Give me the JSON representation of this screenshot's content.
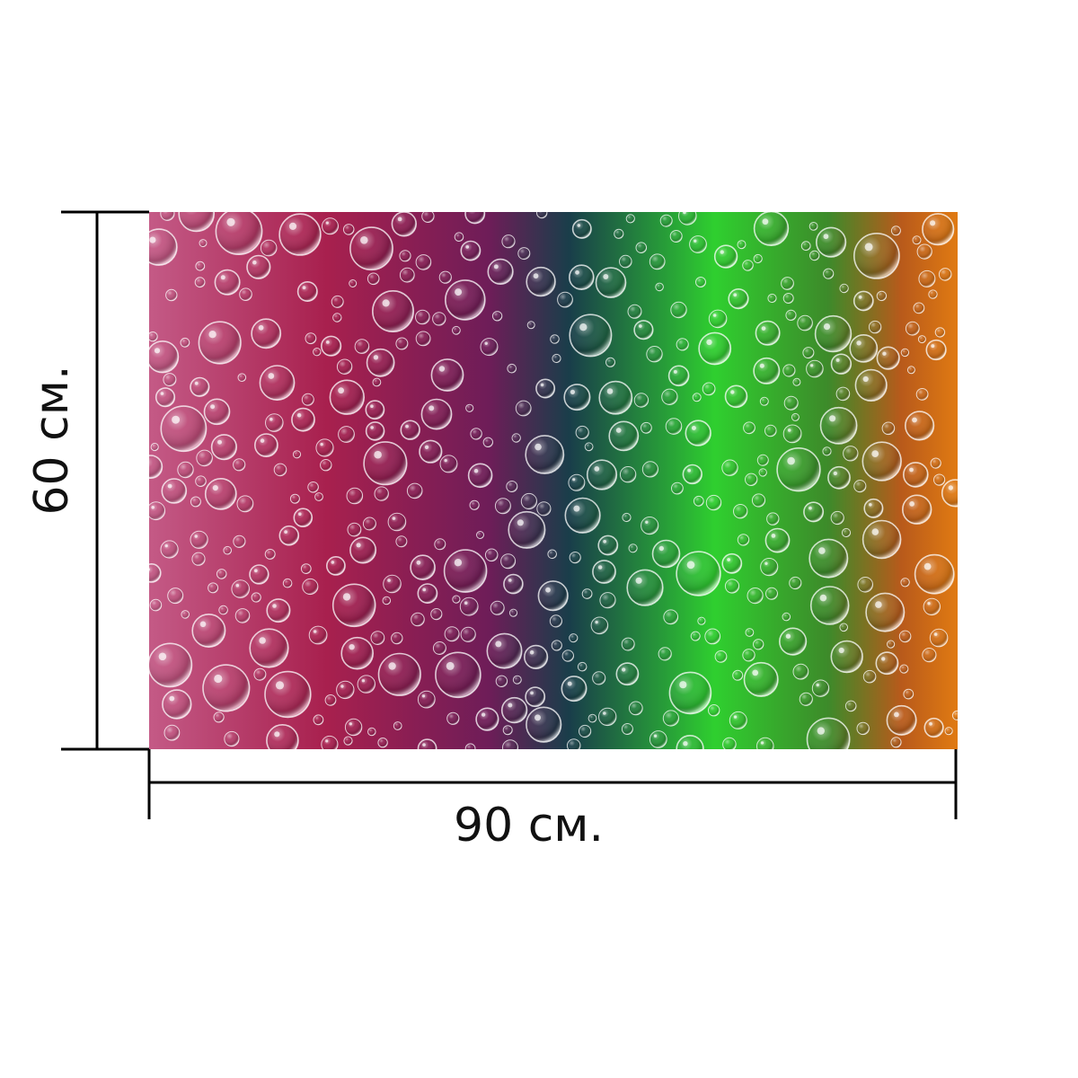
{
  "product": {
    "image_description_icon": "colorful-bubbles-photo",
    "gradient_colors": [
      "#b01f4c",
      "#7a1d6e",
      "#173a46",
      "#28c928",
      "#d7721a"
    ]
  },
  "dimensions": {
    "width_label": "90 см.",
    "height_label": "60 см."
  }
}
